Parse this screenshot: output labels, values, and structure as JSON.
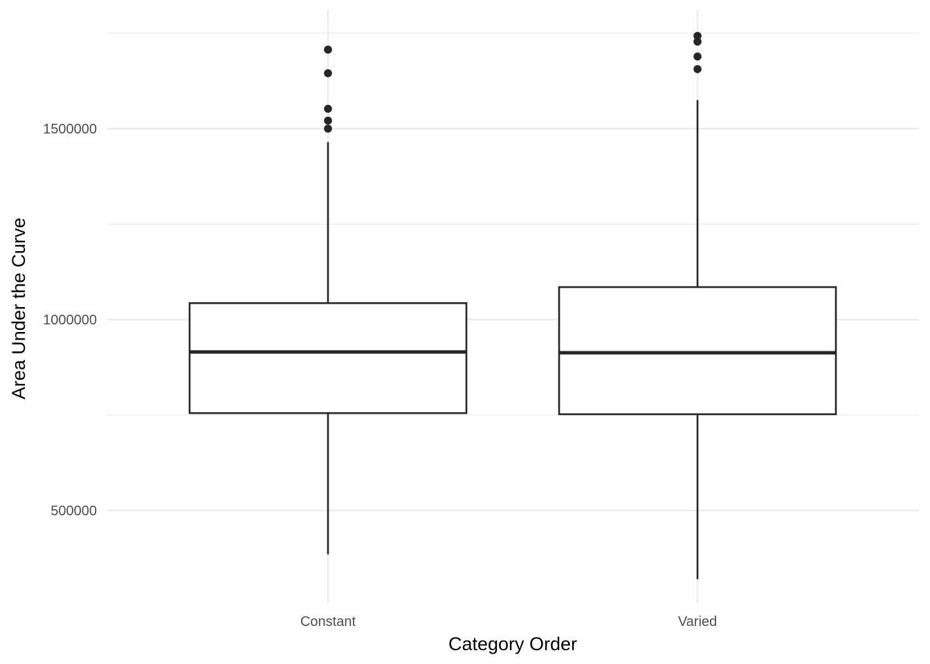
{
  "chart_data": {
    "type": "boxplot",
    "title": "",
    "xlabel": "Category Order",
    "ylabel": "Area Under the Curve",
    "categories": [
      "Constant",
      "Varied"
    ],
    "boxes": [
      {
        "category": "Constant",
        "whisker_low": 385000,
        "q1": 755000,
        "median": 915000,
        "q3": 1043000,
        "whisker_high": 1465000,
        "outliers": [
          1500000,
          1521000,
          1552000,
          1645000,
          1707000
        ]
      },
      {
        "category": "Varied",
        "whisker_low": 320000,
        "q1": 752000,
        "median": 913000,
        "q3": 1085000,
        "whisker_high": 1575000,
        "outliers": [
          1656000,
          1689000,
          1728000,
          1743000
        ]
      }
    ],
    "y_ticks": [
      500000,
      1000000,
      1500000
    ],
    "y_tick_labels": [
      "500000",
      "1000000",
      "1500000"
    ],
    "ylim": [
      260000,
      1805000
    ],
    "grid": true,
    "legend": "none",
    "colors": {
      "box_fill": "#ffffff",
      "box_stroke": "#262626",
      "point": "#262626",
      "grid": "#ebebeb",
      "tick_text": "#4d4d4d",
      "title_text": "#000000"
    }
  }
}
